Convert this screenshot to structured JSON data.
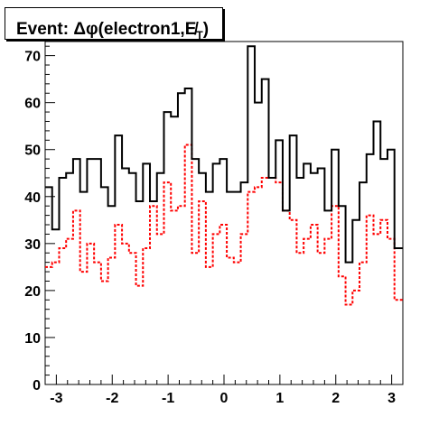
{
  "chart_data": {
    "type": "histogram",
    "title": "Event: Δφ(electron1,E̸T)",
    "title_parts": {
      "prefix": "Event: Δφ(electron1,",
      "met": "E̸",
      "sub": "T",
      "suffix": ")"
    },
    "xlim": [
      -3.2,
      3.2
    ],
    "ylim": [
      0,
      73
    ],
    "xticks": [
      -3,
      -2,
      -1,
      0,
      1,
      2,
      3
    ],
    "yticks": [
      0,
      10,
      20,
      30,
      40,
      50,
      60,
      70
    ],
    "grid": false,
    "legend": "none",
    "bin_edges": [
      -3.2,
      -3.075,
      -2.95,
      -2.825,
      -2.7,
      -2.575,
      -2.45,
      -2.325,
      -2.2,
      -2.075,
      -1.95,
      -1.825,
      -1.7,
      -1.575,
      -1.45,
      -1.325,
      -1.2,
      -1.075,
      -0.95,
      -0.825,
      -0.7,
      -0.575,
      -0.45,
      -0.325,
      -0.2,
      -0.075,
      0.05,
      0.175,
      0.3,
      0.425,
      0.55,
      0.675,
      0.8,
      0.925,
      1.05,
      1.175,
      1.3,
      1.425,
      1.55,
      1.675,
      1.8,
      1.925,
      2.05,
      2.175,
      2.3,
      2.425,
      2.55,
      2.675,
      2.8,
      2.925,
      3.05,
      3.2
    ],
    "series": [
      {
        "style": "solid",
        "color": "#000000",
        "values": [
          42,
          33,
          44,
          45,
          48,
          41,
          48,
          48,
          42,
          38,
          53,
          46,
          45,
          39,
          47,
          39,
          45,
          58,
          57,
          62,
          63,
          48,
          45,
          41,
          47,
          48,
          41,
          41,
          43,
          72,
          60,
          65,
          44,
          52,
          37,
          53,
          44,
          47,
          45,
          46,
          37,
          50,
          38,
          26,
          35,
          43,
          49,
          56,
          48,
          50,
          29
        ]
      },
      {
        "style": "dashed",
        "color": "#ff0000",
        "values": [
          25,
          26,
          29,
          31,
          37,
          24,
          30,
          26,
          22,
          27,
          34,
          30,
          28,
          21,
          29,
          38,
          32,
          43,
          37,
          38,
          51,
          28,
          39,
          25,
          32,
          34,
          27,
          26,
          32,
          41,
          42,
          44,
          44,
          43,
          37,
          35,
          28,
          31,
          34,
          28,
          31,
          38,
          23,
          17,
          20,
          26,
          36,
          32,
          35,
          31,
          18
        ]
      }
    ]
  }
}
